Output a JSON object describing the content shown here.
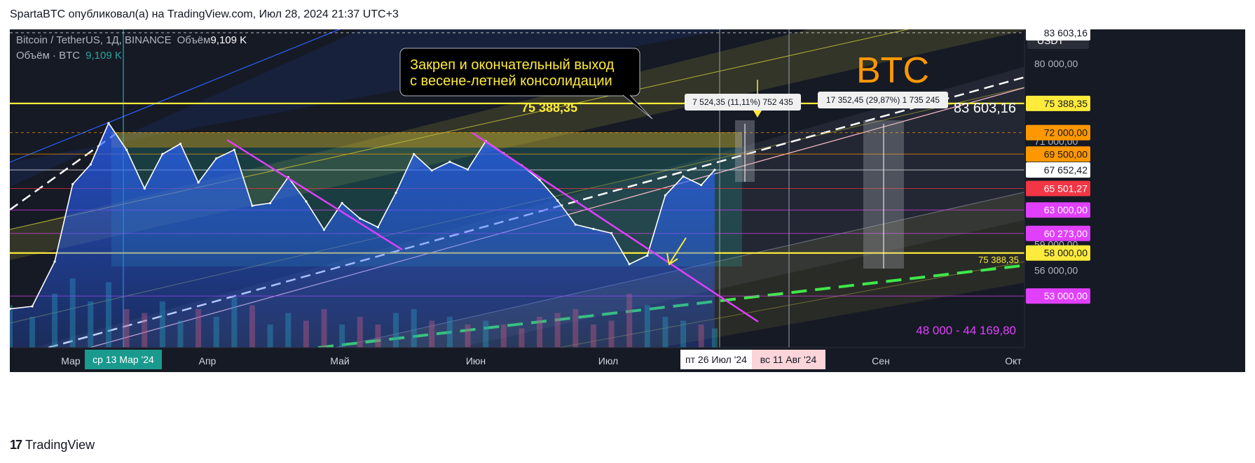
{
  "header": {
    "publisher_line": "SpartaBTC опубликовал(а) на TradingView.com, Июл 28, 2024 21:37 UTC+3"
  },
  "legend": {
    "symbol": "Bitcoin / TetherUS, 1Д, BINANCE",
    "volume_label": "Объём",
    "volume_value": "9,109 K",
    "vol_line_label": "Объём · BTC",
    "vol_line_value": "9,109 K"
  },
  "footer": {
    "brand": "TradingView",
    "logo": "17"
  },
  "annotations": {
    "callout_line1": "Закреп и окончательный выход",
    "callout_line2": "с весене-летней консолидации",
    "btc_label": "BTC",
    "level_label_top": "75 388,35",
    "level_label_bottom": "75 388,35",
    "measure1": "7 524,35 (11,11%) 752 435",
    "measure2": "17 352,45 (29,87%) 1 735 245",
    "target_label": "83 603,16",
    "range_label": "48 000 - 44 169,80"
  },
  "time_axis": {
    "labels": [
      "Мар",
      "Апр",
      "Май",
      "Июн",
      "Июл",
      "Сен",
      "Окт"
    ],
    "highlight_start": "ср 13 Мар '24",
    "highlight_current": "пт 26 Июл '24",
    "highlight_future": "вс 11 Авг '24"
  },
  "price_axis": {
    "currency": "USDT",
    "ticks": [
      "80 000,00",
      "71 000,00",
      "59 000,00",
      "56 000,00"
    ],
    "badges": [
      {
        "text": "83 603,16",
        "bg": "#ffffff",
        "fg": "#131722"
      },
      {
        "text": "75 388,35",
        "bg": "#ffeb3b",
        "fg": "#131722"
      },
      {
        "text": "72 000,00",
        "bg": "#ff9800",
        "fg": "#131722"
      },
      {
        "text": "69 500,00",
        "bg": "#ff9800",
        "fg": "#131722"
      },
      {
        "text": "67 652,42",
        "bg": "#ffffff",
        "fg": "#131722"
      },
      {
        "text": "65 501,27",
        "bg": "#f23645",
        "fg": "#ffffff"
      },
      {
        "text": "63 000,00",
        "bg": "#e040fb",
        "fg": "#ffffff"
      },
      {
        "text": "60 273,00",
        "bg": "#e040fb",
        "fg": "#ffffff"
      },
      {
        "text": "58 000,00",
        "bg": "#ffeb3b",
        "fg": "#131722"
      },
      {
        "text": "53 000,00",
        "bg": "#e040fb",
        "fg": "#ffffff"
      }
    ]
  },
  "chart_data": {
    "type": "area",
    "symbol": "BTCUSDT",
    "x": [
      "2024-02-20",
      "2024-02-25",
      "2024-03-01",
      "2024-03-05",
      "2024-03-09",
      "2024-03-13",
      "2024-03-17",
      "2024-03-21",
      "2024-03-25",
      "2024-03-29",
      "2024-04-02",
      "2024-04-06",
      "2024-04-10",
      "2024-04-14",
      "2024-04-18",
      "2024-04-22",
      "2024-04-26",
      "2024-04-30",
      "2024-05-04",
      "2024-05-08",
      "2024-05-12",
      "2024-05-16",
      "2024-05-20",
      "2024-05-24",
      "2024-05-28",
      "2024-06-01",
      "2024-06-05",
      "2024-06-09",
      "2024-06-13",
      "2024-06-17",
      "2024-06-21",
      "2024-06-25",
      "2024-06-29",
      "2024-07-03",
      "2024-07-07",
      "2024-07-11",
      "2024-07-15",
      "2024-07-19",
      "2024-07-23",
      "2024-07-26"
    ],
    "y": [
      51500,
      51800,
      57000,
      66000,
      68300,
      73100,
      70000,
      65500,
      69500,
      70700,
      66200,
      69000,
      70000,
      63500,
      63800,
      66800,
      64000,
      60700,
      63800,
      62000,
      61000,
      65000,
      69500,
      67600,
      68600,
      67700,
      71000,
      69600,
      68200,
      66500,
      64100,
      61300,
      60800,
      60300,
      56700,
      57700,
      64700,
      66900,
      65900,
      67652
    ],
    "ylim": [
      47000,
      84000
    ],
    "levels": [
      83603.16,
      75388.35,
      72000,
      69500,
      67652.42,
      65501.27,
      63000,
      60273,
      58000,
      53000
    ]
  }
}
